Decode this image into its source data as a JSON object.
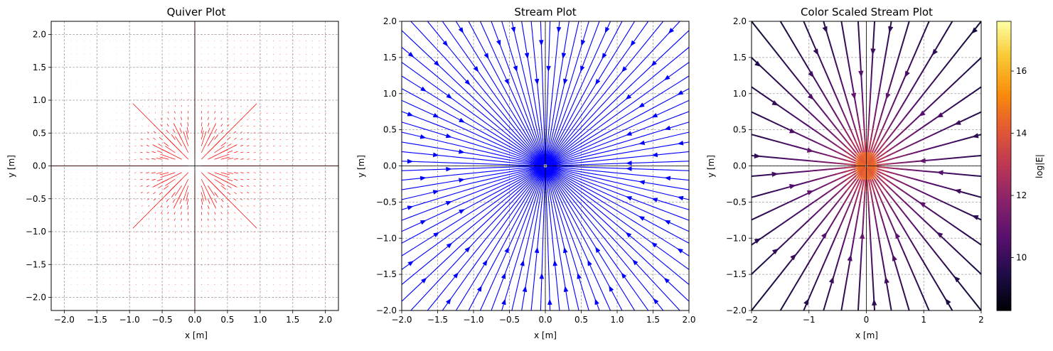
{
  "chart_data": [
    {
      "type": "quiver",
      "title": "Quiver Plot",
      "xlabel": "x [m]",
      "ylabel": "y [m]",
      "xlim": [
        -2.2,
        2.2
      ],
      "ylim": [
        -2.2,
        2.2
      ],
      "xticks": [
        "−2.0",
        "−1.5",
        "−1.0",
        "−0.5",
        "0.0",
        "0.5",
        "1.0",
        "1.5",
        "2.0"
      ],
      "yticks": [
        "−2.0",
        "−1.5",
        "−1.0",
        "−0.5",
        "0.0",
        "0.5",
        "1.0",
        "1.5",
        "2.0"
      ],
      "grid": true,
      "color": "#ff0000",
      "field": "point charge at origin, E ∝ r̂/r², sampled on 41×41 grid over [-2, 2]",
      "grid_range": [
        -2.0,
        2.0
      ],
      "grid_points": 41
    },
    {
      "type": "stream",
      "title": "Stream Plot",
      "xlabel": "x [m]",
      "ylabel": "y [m]",
      "xlim": [
        -2.0,
        2.0
      ],
      "ylim": [
        -2.0,
        2.0
      ],
      "xticks": [
        "−2.0",
        "−1.5",
        "−1.0",
        "−0.5",
        "0.0",
        "0.5",
        "1.0",
        "1.5",
        "2.0"
      ],
      "yticks": [
        "−2.0",
        "−1.5",
        "−1.0",
        "−0.5",
        "0.0",
        "0.5",
        "1.0",
        "1.5",
        "2.0"
      ],
      "grid": true,
      "color": "#0000ff",
      "direction": "inward toward origin"
    },
    {
      "type": "stream",
      "title": "Color Scaled Stream Plot",
      "xlabel": "x [m]",
      "ylabel": "y [m]",
      "xlim": [
        -2.0,
        2.0
      ],
      "ylim": [
        -2.0,
        2.0
      ],
      "xticks": [
        "−2",
        "−1",
        "0",
        "1",
        "2"
      ],
      "yticks": [
        "−2.0",
        "−1.5",
        "−1.0",
        "−0.5",
        "0.0",
        "0.5",
        "1.0",
        "1.5",
        "2.0"
      ],
      "grid": true,
      "colormap": "inferno",
      "direction": "inward toward origin",
      "colorbar": {
        "label": "log|E|",
        "range": [
          8.3,
          17.6
        ],
        "ticks": [
          "10",
          "12",
          "14",
          "16"
        ],
        "tick_values": [
          10,
          12,
          14,
          16
        ]
      }
    }
  ]
}
